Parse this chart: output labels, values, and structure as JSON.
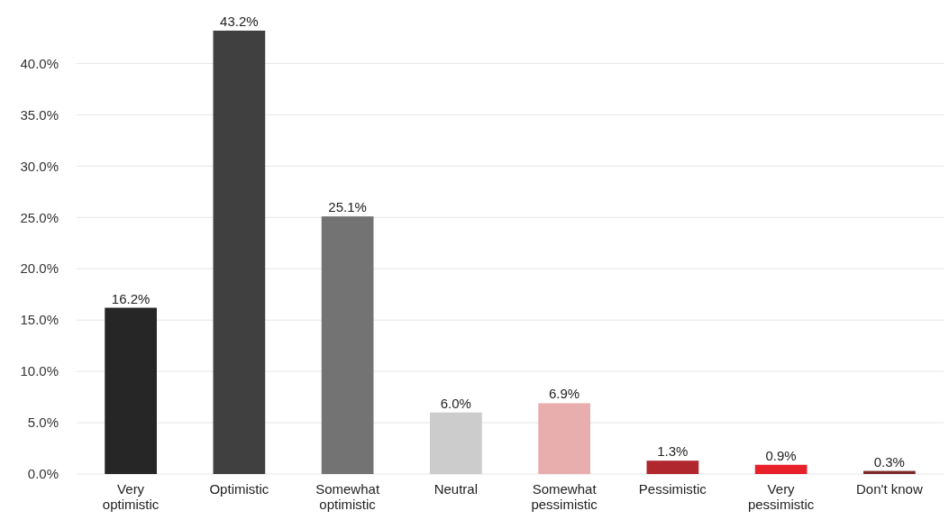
{
  "chart_data": {
    "type": "bar",
    "categories": [
      "Very optimistic",
      "Optimistic",
      "Somewhat optimistic",
      "Neutral",
      "Somewhat pessimistic",
      "Pessimistic",
      "Very pessimistic",
      "Don't know"
    ],
    "values": [
      16.2,
      43.2,
      25.1,
      6.0,
      6.9,
      1.3,
      0.9,
      0.3
    ],
    "value_labels": [
      "16.2%",
      "43.2%",
      "25.1%",
      "6.0%",
      "6.9%",
      "1.3%",
      "0.9%",
      "0.3%"
    ],
    "colors": [
      "#262626",
      "#404040",
      "#737373",
      "#cccccc",
      "#e8aeae",
      "#b0272d",
      "#e8202a",
      "#7a2a2a"
    ],
    "ylim": [
      0,
      43.2
    ],
    "yticks": [
      {
        "value": 0,
        "label": "0.0%"
      },
      {
        "value": 5,
        "label": "5.0%"
      },
      {
        "value": 10,
        "label": "10.0%"
      },
      {
        "value": 15,
        "label": "15.0%"
      },
      {
        "value": 20,
        "label": "20.0%"
      },
      {
        "value": 25,
        "label": "25.0%"
      },
      {
        "value": 30,
        "label": "30.0%"
      },
      {
        "value": 35,
        "label": "35.0%"
      },
      {
        "value": 40,
        "label": "40.0%"
      }
    ],
    "grid": "y"
  }
}
